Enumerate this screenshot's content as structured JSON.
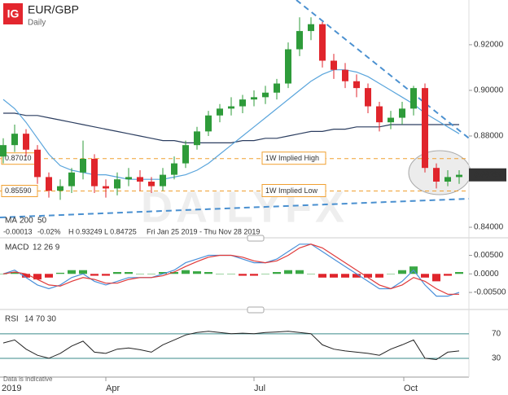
{
  "header": {
    "logo": "IG",
    "symbol": "EUR/GBP",
    "interval": "Daily",
    "watermark": "DAILYFX",
    "note": "Data is indicative"
  },
  "chart_data": [
    {
      "type": "candlestick",
      "ma_label": "MA",
      "stats": [
        "-0.00013",
        "-0.02%",
        "H 0.93249",
        "L 0.84725",
        "Fri Jan 25 2019 - Thu Nov 28 2019"
      ],
      "x": [
        28,
        35,
        42,
        49,
        56,
        63,
        70,
        77,
        84,
        91,
        98,
        105,
        112,
        119,
        126,
        133,
        140,
        147,
        154,
        161,
        168,
        175,
        182,
        189,
        196,
        203,
        210,
        217,
        224,
        231,
        238,
        245,
        252,
        259,
        266,
        273,
        280,
        287,
        294,
        301,
        308
      ],
      "open": [
        0.871,
        0.876,
        0.881,
        0.874,
        0.862,
        0.856,
        0.858,
        0.864,
        0.87,
        0.858,
        0.857,
        0.861,
        0.862,
        0.86,
        0.858,
        0.863,
        0.868,
        0.876,
        0.882,
        0.889,
        0.892,
        0.893,
        0.896,
        0.897,
        0.899,
        0.903,
        0.918,
        0.926,
        0.929,
        0.913,
        0.909,
        0.904,
        0.901,
        0.893,
        0.886,
        0.888,
        0.892,
        0.901,
        0.866,
        0.86,
        0.862
      ],
      "high": [
        0.879,
        0.885,
        0.883,
        0.876,
        0.864,
        0.861,
        0.866,
        0.878,
        0.872,
        0.861,
        0.864,
        0.866,
        0.865,
        0.862,
        0.866,
        0.871,
        0.878,
        0.884,
        0.891,
        0.894,
        0.897,
        0.898,
        0.9,
        0.902,
        0.905,
        0.921,
        0.932,
        0.932,
        0.93,
        0.916,
        0.912,
        0.907,
        0.903,
        0.895,
        0.891,
        0.895,
        0.902,
        0.903,
        0.868,
        0.865,
        0.865
      ],
      "low": [
        0.868,
        0.873,
        0.871,
        0.859,
        0.853,
        0.852,
        0.855,
        0.861,
        0.855,
        0.853,
        0.854,
        0.858,
        0.856,
        0.855,
        0.856,
        0.861,
        0.866,
        0.874,
        0.88,
        0.886,
        0.889,
        0.89,
        0.893,
        0.894,
        0.896,
        0.901,
        0.915,
        0.922,
        0.91,
        0.905,
        0.901,
        0.897,
        0.89,
        0.882,
        0.883,
        0.885,
        0.889,
        0.864,
        0.857,
        0.858,
        0.859
      ],
      "close": [
        0.876,
        0.881,
        0.874,
        0.862,
        0.856,
        0.858,
        0.864,
        0.87,
        0.858,
        0.857,
        0.861,
        0.862,
        0.86,
        0.858,
        0.863,
        0.868,
        0.876,
        0.882,
        0.889,
        0.892,
        0.893,
        0.896,
        0.897,
        0.899,
        0.903,
        0.918,
        0.926,
        0.929,
        0.913,
        0.909,
        0.904,
        0.901,
        0.893,
        0.886,
        0.888,
        0.892,
        0.901,
        0.866,
        0.86,
        0.862,
        0.863
      ],
      "series": [
        {
          "name": "200",
          "color": "#2c3e60",
          "values": [
            0.89,
            0.89,
            0.889,
            0.889,
            0.888,
            0.887,
            0.886,
            0.885,
            0.884,
            0.883,
            0.882,
            0.881,
            0.88,
            0.879,
            0.878,
            0.878,
            0.877,
            0.877,
            0.877,
            0.877,
            0.877,
            0.878,
            0.878,
            0.879,
            0.879,
            0.88,
            0.881,
            0.882,
            0.882,
            0.883,
            0.883,
            0.884,
            0.884,
            0.884,
            0.885,
            0.885,
            0.885,
            0.885,
            0.885,
            0.885,
            0.885
          ]
        },
        {
          "name": "50",
          "color": "#5aa5dc",
          "values": [
            0.896,
            0.892,
            0.886,
            0.879,
            0.872,
            0.867,
            0.865,
            0.864,
            0.863,
            0.863,
            0.862,
            0.861,
            0.861,
            0.861,
            0.861,
            0.862,
            0.863,
            0.865,
            0.868,
            0.872,
            0.876,
            0.88,
            0.884,
            0.888,
            0.892,
            0.896,
            0.9,
            0.904,
            0.907,
            0.909,
            0.909,
            0.908,
            0.906,
            0.903,
            0.9,
            0.897,
            0.894,
            0.89,
            0.887,
            0.884,
            0.881
          ]
        }
      ],
      "trendlines": [
        {
          "x": [
            208,
            314
          ],
          "y": [
            0.9396,
            0.879
          ]
        },
        {
          "x": [
            26,
            314
          ],
          "y": [
            0.8443,
            0.8525
          ]
        }
      ],
      "levels": [
        {
          "value": 0.8701,
          "label": "0.87010",
          "name": "1W Implied High"
        },
        {
          "value": 0.8559,
          "label": "0.85590",
          "name": "1W Implied Low"
        }
      ],
      "last_price": 0.86296,
      "xlim": [
        26,
        314
      ],
      "ylim": [
        0.8368,
        0.9396
      ],
      "yticks": [
        {
          "value": 0.92,
          "label": "0.92000"
        },
        {
          "value": 0.9,
          "label": "0.90000"
        },
        {
          "value": 0.88,
          "label": "0.88000"
        },
        {
          "value": 0.84,
          "label": "0.84000"
        }
      ]
    },
    {
      "type": "macd",
      "title": "MACD",
      "params": "12 26 9",
      "series": [
        {
          "name": "MACD",
          "color": "#4a90d9",
          "values": [
            0.0,
            0.001,
            -0.001,
            -0.003,
            -0.004,
            -0.003,
            -0.001,
            0.0,
            -0.002,
            -0.003,
            -0.002,
            -0.001,
            -0.001,
            -0.001,
            0.0,
            0.001,
            0.003,
            0.004,
            0.005,
            0.005,
            0.005,
            0.004,
            0.003,
            0.003,
            0.004,
            0.006,
            0.008,
            0.008,
            0.006,
            0.004,
            0.002,
            0.0,
            -0.002,
            -0.004,
            -0.004,
            -0.002,
            0.001,
            -0.003,
            -0.006,
            -0.006,
            -0.005
          ]
        },
        {
          "name": "Signal",
          "color": "#e03a3a",
          "values": [
            0.0,
            0.0005,
            0.0,
            -0.0015,
            -0.003,
            -0.0033,
            -0.002,
            -0.001,
            -0.0015,
            -0.0025,
            -0.0025,
            -0.0015,
            -0.001,
            -0.001,
            -0.0005,
            0.0005,
            0.002,
            0.0033,
            0.0045,
            0.005,
            0.005,
            0.0045,
            0.0035,
            0.003,
            0.0035,
            0.005,
            0.007,
            0.008,
            0.007,
            0.005,
            0.003,
            0.001,
            -0.001,
            -0.003,
            -0.004,
            -0.003,
            -0.001,
            -0.002,
            -0.004,
            -0.0055,
            -0.0055
          ]
        }
      ],
      "histogram": [
        0,
        0.0005,
        -0.001,
        -0.0015,
        -0.001,
        0.0003,
        0.001,
        0.001,
        -0.0005,
        -0.0005,
        0.0005,
        0.0005,
        0,
        0,
        0.0005,
        0.0005,
        0.001,
        0.0007,
        0.0005,
        0,
        0,
        -0.0005,
        -0.0005,
        0,
        0.0005,
        0.001,
        0.001,
        0,
        -0.001,
        -0.001,
        -0.001,
        -0.001,
        -0.001,
        -0.001,
        0,
        0.001,
        0.002,
        -0.001,
        -0.002,
        -0.0005,
        0.0005
      ],
      "ylim": [
        -0.0085,
        0.0095
      ],
      "yticks": [
        {
          "value": 0.005,
          "label": "0.00500"
        },
        {
          "value": 0,
          "label": "0.0000"
        },
        {
          "value": -0.005,
          "label": "-0.00500"
        }
      ]
    },
    {
      "type": "rsi",
      "title": "RSI",
      "params": "14 70 30",
      "values": [
        55,
        60,
        45,
        35,
        30,
        38,
        50,
        58,
        40,
        38,
        45,
        47,
        44,
        40,
        52,
        60,
        68,
        72,
        74,
        72,
        70,
        71,
        70,
        72,
        73,
        74,
        72,
        70,
        52,
        45,
        42,
        40,
        38,
        35,
        45,
        52,
        60,
        30,
        28,
        40,
        42
      ],
      "color": "#222222",
      "ylim": [
        10,
        103
      ],
      "yticks": [
        70,
        30
      ],
      "year_label": "2019",
      "xticks": [
        {
          "value": 91,
          "label": "Apr"
        },
        {
          "value": 182,
          "label": "Jul"
        },
        {
          "value": 274,
          "label": "Oct"
        }
      ]
    }
  ]
}
